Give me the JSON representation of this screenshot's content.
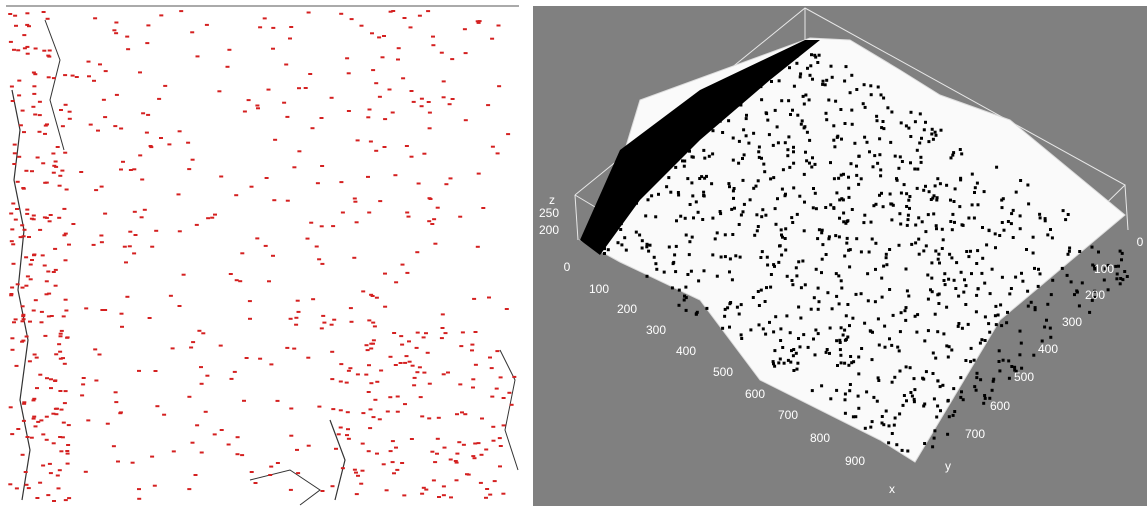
{
  "surface_plot": {
    "z_label": "z",
    "z_ticks": [
      250,
      200
    ],
    "x_label": "x",
    "x_ticks": [
      0,
      100,
      200,
      300,
      400,
      500,
      600,
      700,
      800,
      900
    ],
    "y_label": "y",
    "y_ticks": [
      0,
      100,
      200,
      300,
      400,
      500,
      600,
      700
    ]
  }
}
